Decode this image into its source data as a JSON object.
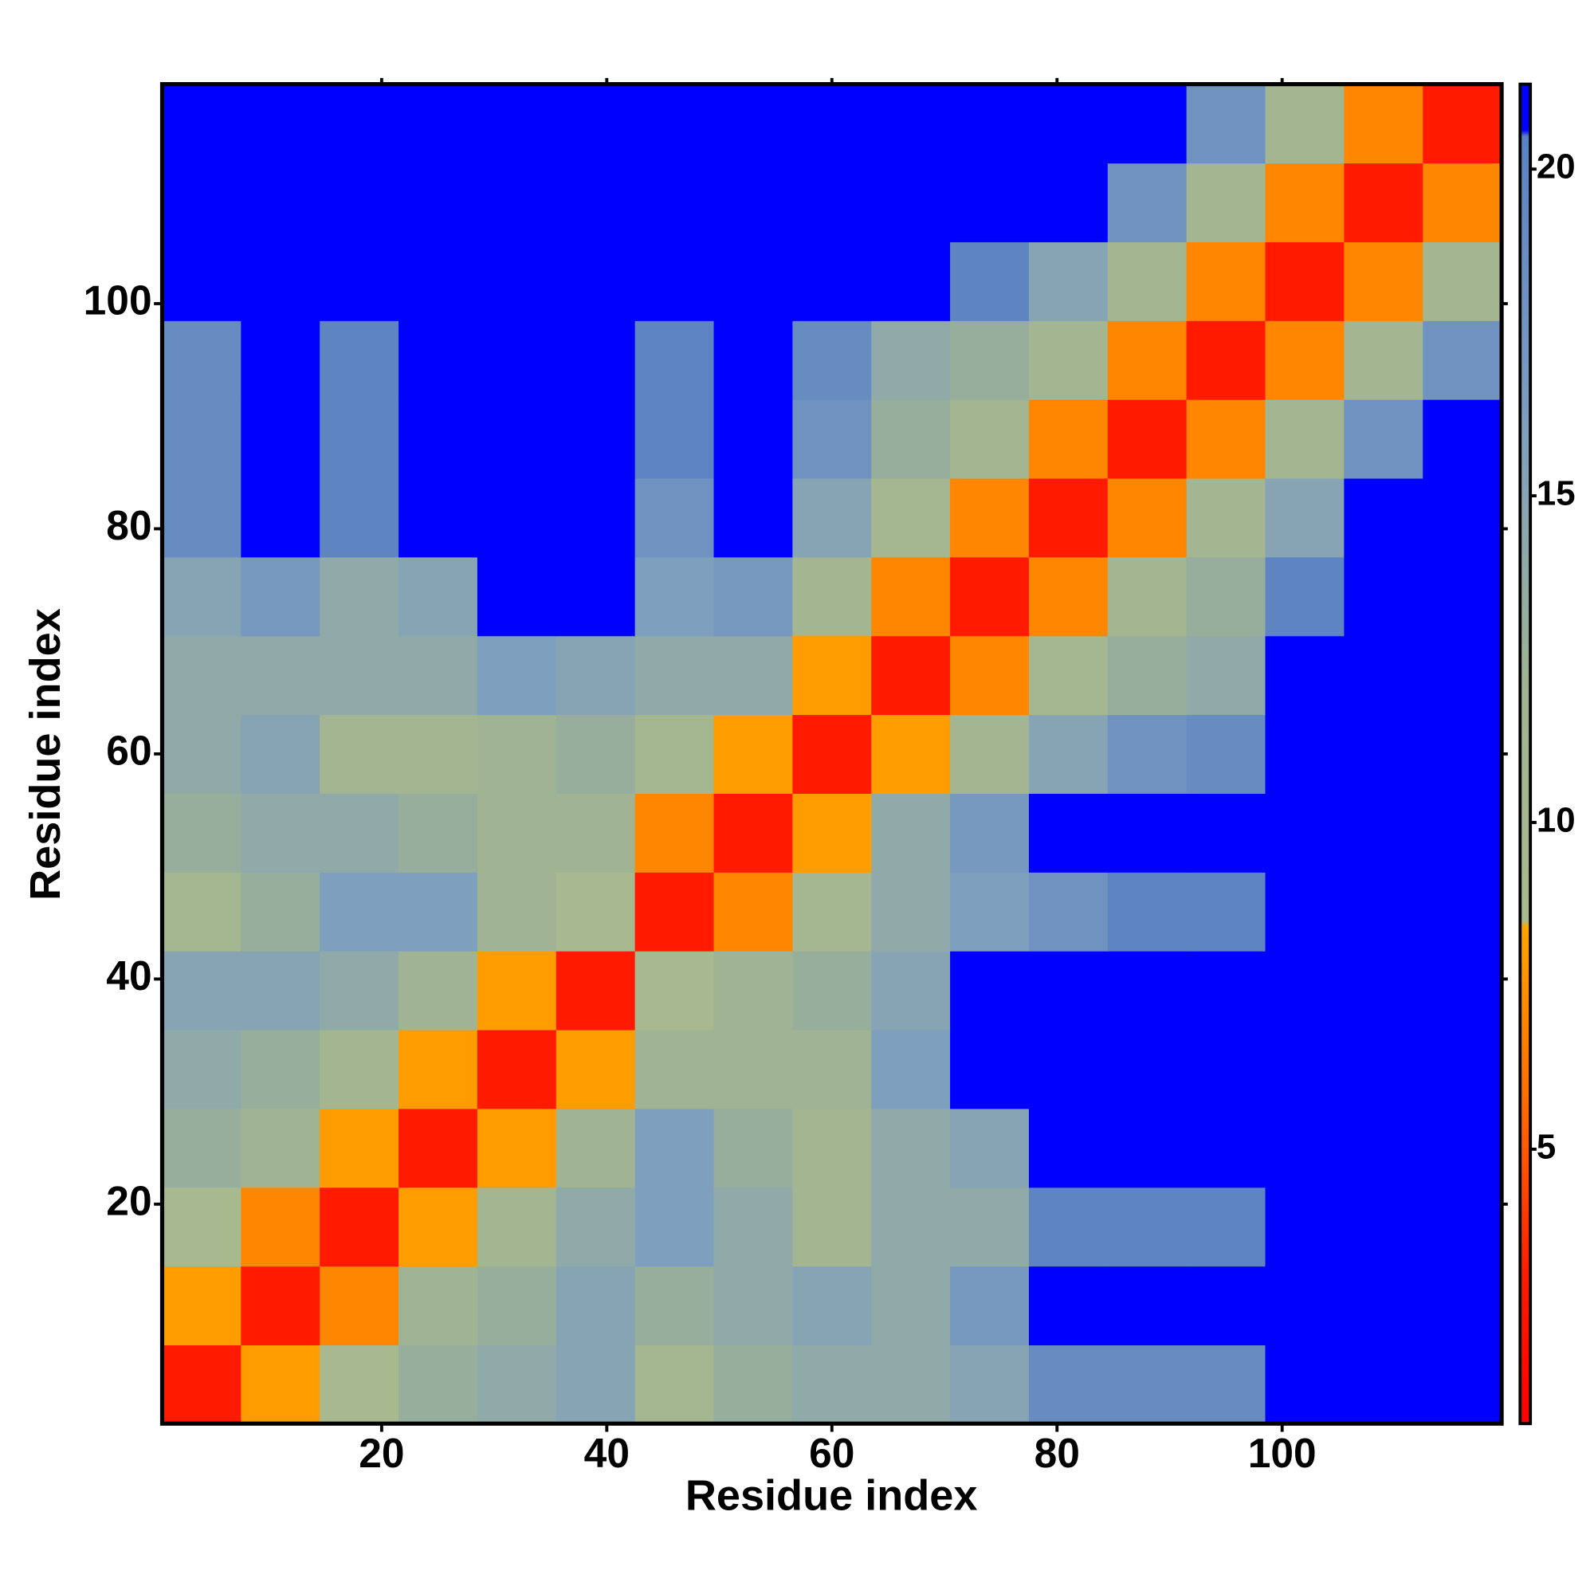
{
  "chart_data": {
    "type": "heatmap",
    "xlabel": "Residue index",
    "ylabel": "Residue index",
    "x_edges": [
      0.5,
      7.5,
      14.5,
      21.5,
      28.5,
      35.5,
      42.5,
      49.5,
      56.5,
      63.5,
      70.5,
      77.5,
      84.5,
      91.5,
      98.5,
      105.5,
      112.5,
      119.5
    ],
    "y_edges": [
      0.5,
      7.5,
      14.5,
      21.5,
      28.5,
      35.5,
      42.5,
      49.5,
      56.5,
      63.5,
      70.5,
      77.5,
      84.5,
      91.5,
      98.5,
      105.5,
      112.5,
      119.5
    ],
    "z": [
      [
        3,
        8,
        9,
        13,
        14,
        15,
        10,
        13,
        14,
        14,
        15,
        19,
        19,
        19,
        21,
        21,
        21
      ],
      [
        8,
        3,
        7,
        12,
        13,
        15,
        13,
        14,
        15,
        14,
        17,
        21,
        21,
        21,
        21,
        21,
        21
      ],
      [
        9,
        7,
        3,
        8,
        11,
        14,
        16,
        14,
        11,
        14,
        14,
        20,
        20,
        20,
        21,
        21,
        21
      ],
      [
        13,
        12,
        8,
        3,
        8,
        12,
        16,
        13,
        11,
        14,
        15,
        21,
        21,
        21,
        21,
        21,
        21
      ],
      [
        14,
        13,
        11,
        8,
        3,
        8,
        12,
        12,
        12,
        16,
        21,
        21,
        21,
        21,
        21,
        21,
        21
      ],
      [
        15,
        15,
        14,
        12,
        8,
        3,
        9,
        12,
        13,
        15,
        21,
        21,
        21,
        21,
        21,
        21,
        21
      ],
      [
        10,
        13,
        16,
        16,
        12,
        9,
        3,
        7,
        10,
        14,
        16,
        18,
        20,
        20,
        21,
        21,
        21
      ],
      [
        13,
        14,
        14,
        13,
        12,
        12,
        7,
        3,
        8,
        14,
        17,
        21,
        21,
        21,
        21,
        21,
        21
      ],
      [
        14,
        15,
        11,
        11,
        12,
        13,
        10,
        8,
        3,
        8,
        11,
        15,
        18,
        19,
        21,
        21,
        21
      ],
      [
        14,
        14,
        14,
        14,
        16,
        15,
        14,
        14,
        8,
        3,
        7,
        10,
        13,
        14,
        21,
        21,
        21
      ],
      [
        15,
        17,
        14,
        15,
        21,
        21,
        16,
        17,
        11,
        7,
        3,
        7,
        11,
        13,
        20,
        21,
        21
      ],
      [
        19,
        21,
        20,
        21,
        21,
        21,
        18,
        21,
        15,
        10,
        7,
        3,
        7,
        11,
        15,
        21,
        21
      ],
      [
        19,
        21,
        20,
        21,
        21,
        21,
        20,
        21,
        18,
        13,
        11,
        7,
        3,
        7,
        11,
        18,
        21
      ],
      [
        19,
        21,
        20,
        21,
        21,
        21,
        20,
        21,
        19,
        14,
        13,
        11,
        7,
        3,
        7,
        11,
        18
      ],
      [
        21,
        21,
        21,
        21,
        21,
        21,
        21,
        21,
        21,
        21,
        20,
        15,
        11,
        7,
        3,
        7,
        11
      ],
      [
        21,
        21,
        21,
        21,
        21,
        21,
        21,
        21,
        21,
        21,
        21,
        21,
        18,
        11,
        7,
        3,
        7
      ],
      [
        21,
        21,
        21,
        21,
        21,
        21,
        21,
        21,
        21,
        21,
        21,
        21,
        21,
        18,
        11,
        7,
        3
      ]
    ],
    "xlim": [
      0.5,
      119.5
    ],
    "ylim": [
      0.5,
      119.5
    ],
    "xticks": [
      20,
      40,
      60,
      80,
      100
    ],
    "yticks": [
      20,
      40,
      60,
      80,
      100
    ],
    "zlim": [
      0.8,
      21.3
    ],
    "zticks": [
      5,
      10,
      15,
      20
    ],
    "colorscale": [
      [
        0.8,
        "#ff0000"
      ],
      [
        3,
        "#ff1a00"
      ],
      [
        5,
        "#ff5a00"
      ],
      [
        8.4,
        "#ffa500"
      ],
      [
        8.5,
        "#a9ba8e"
      ],
      [
        12,
        "#a0b392"
      ],
      [
        16,
        "#7f9fbf"
      ],
      [
        20.5,
        "#5a82c2"
      ],
      [
        20.6,
        "#0000ff"
      ],
      [
        21.3,
        "#0000ff"
      ]
    ]
  }
}
